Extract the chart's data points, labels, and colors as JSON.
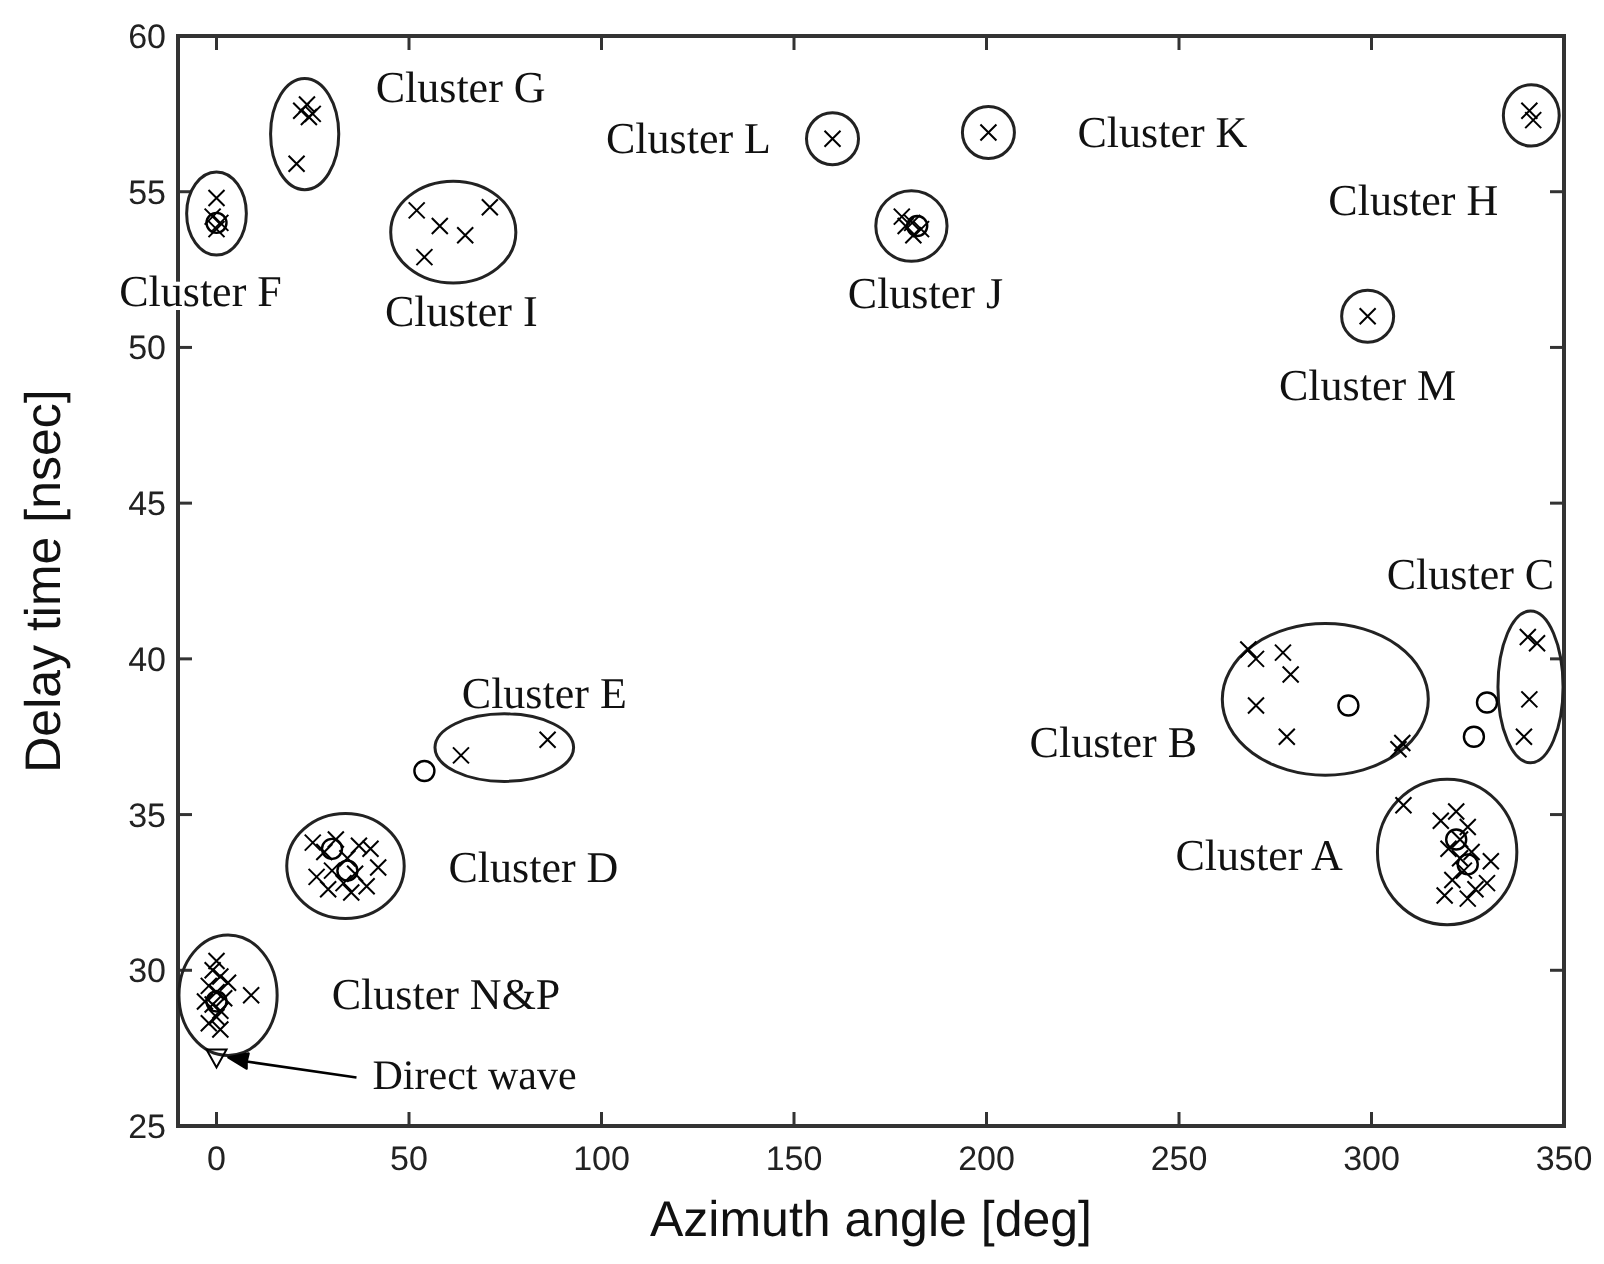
{
  "chart_data": {
    "type": "scatter",
    "xlabel": "Azimuth angle [deg]",
    "ylabel": "Delay time [nsec]",
    "xlim": [
      -10,
      350
    ],
    "xticks": [
      0,
      50,
      100,
      150,
      200,
      250,
      300,
      350
    ],
    "ylim": [
      25,
      60
    ],
    "yticks": [
      25,
      30,
      35,
      40,
      45,
      50,
      55,
      60
    ],
    "grid": false,
    "series": [
      {
        "name": "Cluster A",
        "color": "#000000",
        "marker": "cross",
        "x": [
          308.3,
          318,
          322,
          325,
          320,
          323,
          326,
          324,
          321,
          327,
          319,
          330,
          325,
          323,
          331
        ],
        "values": [
          35.3,
          34.8,
          35.1,
          34.6,
          33.9,
          33.6,
          33.8,
          33.2,
          32.9,
          32.6,
          32.4,
          32.8,
          32.3,
          34.2,
          33.5
        ]
      },
      {
        "name": "Cluster B",
        "color": "#000000",
        "marker": "cross",
        "x": [
          268,
          270,
          277,
          279,
          270,
          278,
          307,
          308
        ],
        "values": [
          40.3,
          40.0,
          40.2,
          39.5,
          38.5,
          37.5,
          37.1,
          37.3
        ]
      },
      {
        "name": "Cluster C",
        "color": "#000000",
        "marker": "cross",
        "x": [
          340.6,
          343,
          341,
          339.6
        ],
        "values": [
          40.7,
          40.5,
          38.7,
          37.5
        ]
      },
      {
        "name": "Cluster D",
        "color": "#000000",
        "marker": "cross",
        "x": [
          25,
          28,
          31,
          34,
          37,
          40,
          26,
          30,
          33,
          36,
          39,
          42,
          35,
          29
        ],
        "values": [
          34.1,
          33.8,
          34.2,
          33.6,
          34.0,
          33.9,
          33.0,
          33.2,
          32.8,
          33.1,
          32.7,
          33.3,
          32.5,
          32.6
        ]
      },
      {
        "name": "Cluster E",
        "color": "#000000",
        "marker": "cross",
        "x": [
          63.5,
          86
        ],
        "values": [
          36.9,
          37.4
        ]
      },
      {
        "name": "Cluster F",
        "color": "#000000",
        "marker": "cross",
        "x": [
          0,
          -1,
          1,
          0
        ],
        "values": [
          54.8,
          54.2,
          54.0,
          53.8
        ]
      },
      {
        "name": "Cluster G",
        "color": "#000000",
        "marker": "cross",
        "x": [
          22,
          24,
          23.5,
          25,
          20.8
        ],
        "values": [
          57.6,
          57.4,
          57.8,
          57.5,
          55.9
        ]
      },
      {
        "name": "Cluster H",
        "color": "#000000",
        "marker": "cross",
        "x": [
          342,
          341
        ],
        "values": [
          57.3,
          57.6
        ]
      },
      {
        "name": "Cluster I",
        "color": "#000000",
        "marker": "cross",
        "x": [
          52,
          58,
          64.6,
          71,
          54
        ],
        "values": [
          54.4,
          53.9,
          53.6,
          54.5,
          52.9
        ]
      },
      {
        "name": "Cluster J",
        "color": "#000000",
        "marker": "cross",
        "x": [
          178,
          180.7,
          183,
          181,
          179
        ],
        "values": [
          54.2,
          54.0,
          53.8,
          53.6,
          53.9
        ]
      },
      {
        "name": "Cluster K",
        "color": "#000000",
        "marker": "cross",
        "x": [
          200.5
        ],
        "values": [
          56.9
        ]
      },
      {
        "name": "Cluster L",
        "color": "#000000",
        "marker": "cross",
        "x": [
          160
        ],
        "values": [
          56.7
        ]
      },
      {
        "name": "Cluster M",
        "color": "#000000",
        "marker": "cross",
        "x": [
          299
        ],
        "values": [
          51.0
        ]
      },
      {
        "name": "Cluster N&P",
        "color": "#000000",
        "marker": "cross",
        "x": [
          0,
          -1,
          1,
          -2,
          0,
          2,
          -1,
          1,
          0,
          -2,
          1,
          3,
          9,
          -3
        ],
        "values": [
          30.3,
          30.0,
          29.8,
          29.5,
          29.3,
          29.1,
          28.9,
          28.7,
          28.5,
          28.3,
          28.1,
          29.6,
          29.2,
          29.0
        ]
      },
      {
        "color": "#000000",
        "marker": "circle",
        "x": [
          322,
          325,
          294,
          330,
          326.6,
          30,
          34,
          54,
          0,
          182,
          0
        ],
        "values": [
          34.2,
          33.4,
          38.5,
          38.6,
          37.5,
          33.9,
          33.2,
          36.4,
          54.0,
          53.9,
          29.0
        ]
      },
      {
        "color": "#000000",
        "marker": "triangle",
        "x": [
          0
        ],
        "values": [
          27.2
        ]
      }
    ],
    "annotations": [
      "Direct wave"
    ]
  }
}
